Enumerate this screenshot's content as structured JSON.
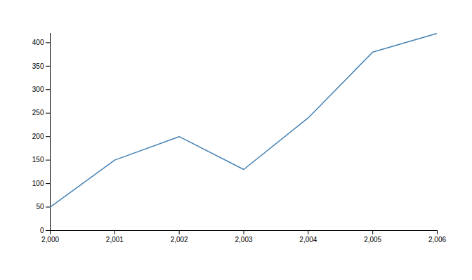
{
  "chart_data": {
    "type": "line",
    "x": [
      2000,
      2001,
      2002,
      2003,
      2004,
      2005,
      2006
    ],
    "values": [
      50,
      150,
      200,
      130,
      240,
      380,
      420
    ],
    "color": "#4682b4",
    "xlim": [
      2000,
      2006
    ],
    "xticks": [
      {
        "value": 2000,
        "label": "2,000"
      },
      {
        "value": 2001,
        "label": "2,001"
      },
      {
        "value": 2002,
        "label": "2,002"
      },
      {
        "value": 2003,
        "label": "2,003"
      },
      {
        "value": 2004,
        "label": "2,004"
      },
      {
        "value": 2005,
        "label": "2,005"
      },
      {
        "value": 2006,
        "label": "2,006"
      }
    ],
    "ylim": [
      0,
      420
    ],
    "yticks": [
      0,
      50,
      100,
      150,
      200,
      250,
      300,
      350,
      400
    ],
    "grid": false
  }
}
